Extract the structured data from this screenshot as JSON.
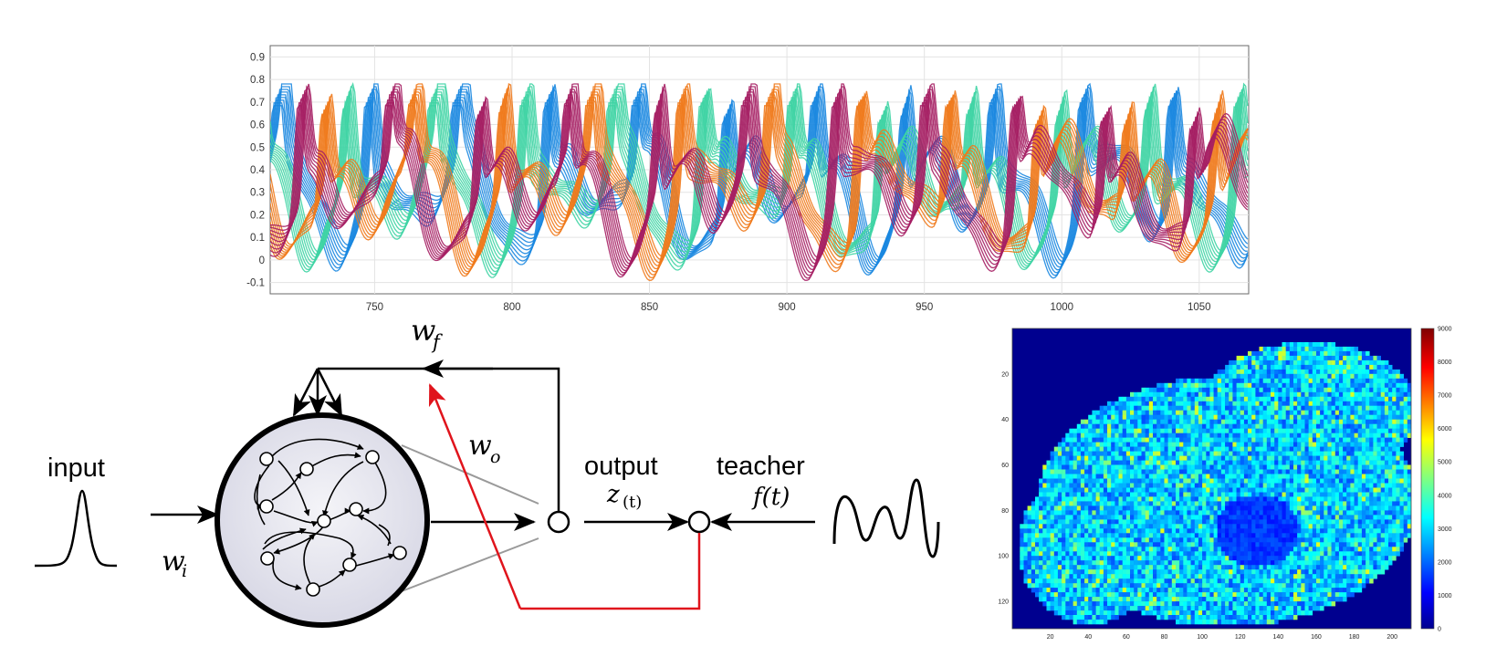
{
  "chart_data": {
    "type": "line",
    "xlim": [
      712,
      1068
    ],
    "ylim": [
      -0.15,
      0.95
    ],
    "xticks": [
      "750",
      "800",
      "850",
      "900",
      "950",
      "1000",
      "1050"
    ],
    "yticks": [
      "0.9",
      "0.8",
      "0.7",
      "0.6",
      "0.5",
      "0.4",
      "0.3",
      "0.2",
      "0.1",
      "0",
      "-0.1"
    ],
    "grid": true,
    "series_groups": [
      {
        "color": "#1a87e0",
        "count": 9,
        "phase": 0.0
      },
      {
        "color": "#3fd4a4",
        "count": 9,
        "phase": 1.6
      },
      {
        "color": "#f07a1c",
        "count": 9,
        "phase": 3.1
      },
      {
        "color": "#a51e63",
        "count": 9,
        "phase": 4.7
      }
    ],
    "shape_note": "spiking oscillations, each trace peaks near 0.78 and dips near -0.08"
  },
  "diagram": {
    "input_label": "input",
    "output_label": "output",
    "teacher_label": "teacher",
    "w_i": {
      "base": "w",
      "sub": "i"
    },
    "w_f": {
      "base": "w",
      "sub": "f"
    },
    "w_o": {
      "base": "w",
      "sub": "o"
    },
    "z_t": {
      "base": "z",
      "sub": "(t)"
    },
    "f_t": "f(t)",
    "colors": {
      "arrow": "#000000",
      "readout": "#e0141c",
      "reservoir_fill": "#e4e4ef",
      "projection": "#9a9a9a"
    }
  },
  "heatmap": {
    "yticks": [
      "20",
      "40",
      "60",
      "80",
      "100",
      "120"
    ],
    "xticks": [
      "20",
      "40",
      "60",
      "80",
      "100",
      "120",
      "140",
      "160",
      "180",
      "200"
    ],
    "colorbar_ticks": [
      "9000",
      "8000",
      "7000",
      "6000",
      "5000",
      "4000",
      "3000",
      "2000",
      "1000",
      "0"
    ],
    "colormap": "jet",
    "background": "#00008f"
  }
}
